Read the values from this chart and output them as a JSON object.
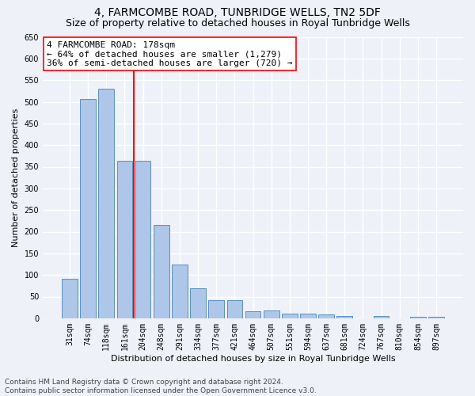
{
  "title": "4, FARMCOMBE ROAD, TUNBRIDGE WELLS, TN2 5DF",
  "subtitle": "Size of property relative to detached houses in Royal Tunbridge Wells",
  "xlabel": "Distribution of detached houses by size in Royal Tunbridge Wells",
  "ylabel": "Number of detached properties",
  "footer_line1": "Contains HM Land Registry data © Crown copyright and database right 2024.",
  "footer_line2": "Contains public sector information licensed under the Open Government Licence v3.0.",
  "categories": [
    "31sqm",
    "74sqm",
    "118sqm",
    "161sqm",
    "204sqm",
    "248sqm",
    "291sqm",
    "334sqm",
    "377sqm",
    "421sqm",
    "464sqm",
    "507sqm",
    "551sqm",
    "594sqm",
    "637sqm",
    "681sqm",
    "724sqm",
    "767sqm",
    "810sqm",
    "854sqm",
    "897sqm"
  ],
  "values": [
    92,
    507,
    530,
    363,
    363,
    215,
    125,
    70,
    42,
    42,
    17,
    18,
    11,
    11,
    9,
    5,
    0,
    5,
    0,
    4,
    4
  ],
  "bar_color": "#aec6e8",
  "bar_edge_color": "#5a8fc0",
  "vline_x": 3.5,
  "vline_color": "red",
  "annotation_line1": "4 FARMCOMBE ROAD: 178sqm",
  "annotation_line2": "← 64% of detached houses are smaller (1,279)",
  "annotation_line3": "36% of semi-detached houses are larger (720) →",
  "annotation_box_color": "white",
  "annotation_box_edge_color": "red",
  "ylim": [
    0,
    650
  ],
  "yticks": [
    0,
    50,
    100,
    150,
    200,
    250,
    300,
    350,
    400,
    450,
    500,
    550,
    600,
    650
  ],
  "background_color": "#eef2f8",
  "grid_color": "white",
  "title_fontsize": 10,
  "subtitle_fontsize": 9,
  "annotation_fontsize": 8,
  "ylabel_fontsize": 8,
  "xlabel_fontsize": 8,
  "tick_fontsize": 7,
  "footer_fontsize": 6.5
}
